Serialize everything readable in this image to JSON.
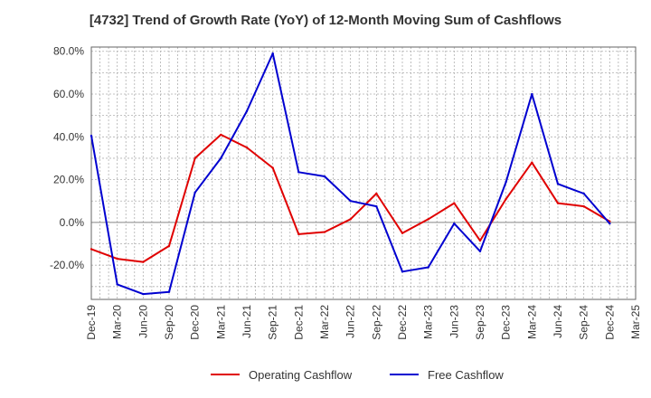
{
  "chart_data": {
    "type": "line",
    "title": "[4732]  Trend of Growth Rate (YoY) of 12-Month Moving Sum of Cashflows",
    "xlabel": "",
    "ylabel": "",
    "ylim": [
      -36,
      82
    ],
    "y_ticks": [
      -20,
      0,
      20,
      40,
      60,
      80
    ],
    "y_tick_labels": [
      "-20.0%",
      "0.0%",
      "20.0%",
      "40.0%",
      "60.0%",
      "80.0%"
    ],
    "categories": [
      "Dec-19",
      "Mar-20",
      "Jun-20",
      "Sep-20",
      "Dec-20",
      "Mar-21",
      "Jun-21",
      "Sep-21",
      "Dec-21",
      "Mar-22",
      "Jun-22",
      "Sep-22",
      "Dec-22",
      "Mar-23",
      "Jun-23",
      "Sep-23",
      "Dec-23",
      "Mar-24",
      "Jun-24",
      "Sep-24",
      "Dec-24",
      "Mar-25"
    ],
    "grid": true,
    "legend_position": "bottom-center",
    "series": [
      {
        "name": "Operating Cashflow",
        "color": "#e00000",
        "values": [
          -12.5,
          -17,
          -18.5,
          -11,
          30,
          41,
          35,
          25.5,
          -5.5,
          -4.5,
          1.5,
          13.5,
          -5,
          1.5,
          9,
          -8.5,
          11,
          28,
          9,
          7.5,
          0.5,
          null
        ]
      },
      {
        "name": "Free Cashflow",
        "color": "#0000d0",
        "values": [
          40.5,
          -29,
          -33.5,
          -32.5,
          14,
          30,
          52,
          79,
          23.5,
          21.5,
          10,
          7.5,
          -23,
          -21,
          -0.5,
          -13.5,
          19,
          60,
          18,
          13.5,
          -0.5,
          null
        ]
      }
    ]
  }
}
